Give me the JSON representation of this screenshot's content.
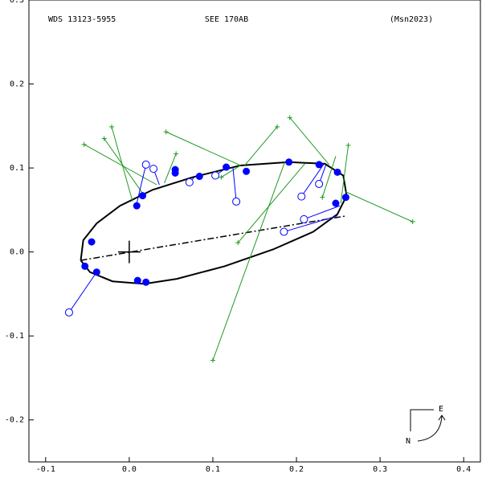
{
  "chart_data": {
    "type": "scatter",
    "title": "WDS 13123-5955",
    "subtitle": "SEE 170AB",
    "reference": "(Msn2023)",
    "compass": {
      "east": "E",
      "north": "N"
    },
    "xlim": [
      -0.12,
      0.42
    ],
    "ylim": [
      -0.25,
      0.3
    ],
    "xticks": [
      -0.1,
      {
        "value": 0,
        "label": "0.0"
      },
      0.1,
      0.2,
      0.3,
      0.4
    ],
    "yticks": [
      -0.2,
      -0.1,
      {
        "value": 0,
        "label": "0.0"
      },
      0.1,
      0.2,
      0.3
    ],
    "series": [
      {
        "marker": "line",
        "color": "#000000",
        "x": [
          -0.058,
          -0.055,
          -0.039,
          -0.011,
          0.028,
          0.076,
          0.133,
          0.191,
          0.234,
          0.256,
          0.26,
          0.249,
          0.22,
          0.172,
          0.114,
          0.057,
          0.018,
          -0.02,
          -0.047,
          -0.058
        ],
        "values": [
          -0.01,
          0.014,
          0.034,
          0.055,
          0.074,
          0.089,
          0.103,
          0.107,
          0.105,
          0.091,
          0.067,
          0.045,
          0.024,
          0.003,
          -0.017,
          -0.032,
          -0.038,
          -0.035,
          -0.024,
          -0.01
        ]
      },
      {
        "marker": "dashdot",
        "color": "#000000",
        "x": [
          -0.058,
          0.26
        ],
        "values": [
          -0.01,
          0.043
        ]
      },
      {
        "marker": "cross",
        "color": "#000000",
        "x": [
          0
        ],
        "values": [
          0
        ]
      },
      {
        "marker": "plus",
        "color": "#1f9a1f",
        "x": [
          -0.054,
          -0.03,
          -0.021,
          0.044,
          0.056,
          0.1,
          0.13,
          0.177,
          0.192,
          0.339,
          0.262,
          0.231,
          0.11
        ],
        "values": [
          0.128,
          0.135,
          0.149,
          0.143,
          0.117,
          -0.129,
          0.011,
          0.149,
          0.16,
          0.036,
          0.127,
          0.065,
          0.089
        ],
        "fit_x": [
          0.033,
          0.018,
          0.004,
          0.133,
          0.042,
          0.186,
          0.21,
          0.138,
          0.239,
          0.258,
          0.253,
          0.247,
          0.133
        ],
        "fit_y": [
          0.08,
          0.067,
          0.06,
          0.103,
          0.082,
          0.107,
          0.105,
          0.103,
          0.104,
          0.072,
          0.058,
          0.114,
          0.103
        ]
      },
      {
        "marker": "open-circle",
        "color": "#0000ff",
        "x": [
          -0.072,
          0.02,
          0.029,
          0.072,
          0.103,
          0.128,
          0.206,
          0.227,
          0.209,
          0.185
        ],
        "values": [
          -0.072,
          0.104,
          0.099,
          0.083,
          0.091,
          0.06,
          0.066,
          0.081,
          0.039,
          0.024
        ],
        "fit_x": [
          -0.039,
          0.009,
          0.036,
          0.078,
          0.116,
          0.124,
          0.233,
          0.235,
          0.252,
          0.249
        ],
        "fit_y": [
          -0.024,
          0.058,
          0.08,
          0.089,
          0.1,
          0.101,
          0.105,
          0.103,
          0.055,
          0.043
        ]
      },
      {
        "marker": "filled-circle",
        "color": "#0000ff",
        "x": [
          -0.045,
          -0.053,
          -0.039,
          0.009,
          0.016,
          0.01,
          0.02,
          0.055,
          0.055,
          0.084,
          0.116,
          0.14,
          0.191,
          0.227,
          0.249,
          0.247,
          0.259
        ],
        "values": [
          0.012,
          -0.017,
          -0.024,
          0.055,
          0.067,
          -0.034,
          -0.036,
          0.098,
          0.094,
          0.09,
          0.101,
          0.096,
          0.107,
          0.104,
          0.095,
          0.058,
          0.065
        ]
      }
    ]
  }
}
